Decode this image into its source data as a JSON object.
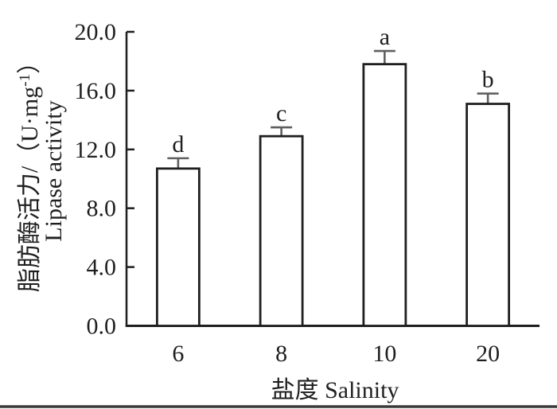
{
  "figure": {
    "background": "#ffffff",
    "bottom_rule_color": "#3a3a3a"
  },
  "chart_data": {
    "type": "bar",
    "title": "",
    "categories": [
      "6",
      "8",
      "10",
      "20"
    ],
    "values": [
      10.7,
      12.9,
      17.8,
      15.1
    ],
    "errors_upper": [
      0.7,
      0.6,
      0.9,
      0.7
    ],
    "significance_letters": [
      "d",
      "c",
      "a",
      "b"
    ],
    "xlabel": "盐度 Salinity",
    "ylabel": {
      "zh_prefix": "脂肪酶活力/（U·mg",
      "zh_superscript": "-1",
      "zh_suffix": "）",
      "en": "Lipase activity"
    },
    "ylim": [
      0,
      20
    ],
    "ytick_interval": 4,
    "ytick_labels": [
      "0.0",
      "4.0",
      "8.0",
      "12.0",
      "16.0",
      "20.0"
    ],
    "grid": false,
    "legend": null,
    "bar_fill": "#ffffff",
    "bar_stroke": "#1f1f1f",
    "axis_color": "#1f1f1f",
    "error_bar_color": "#5f5f5f"
  }
}
